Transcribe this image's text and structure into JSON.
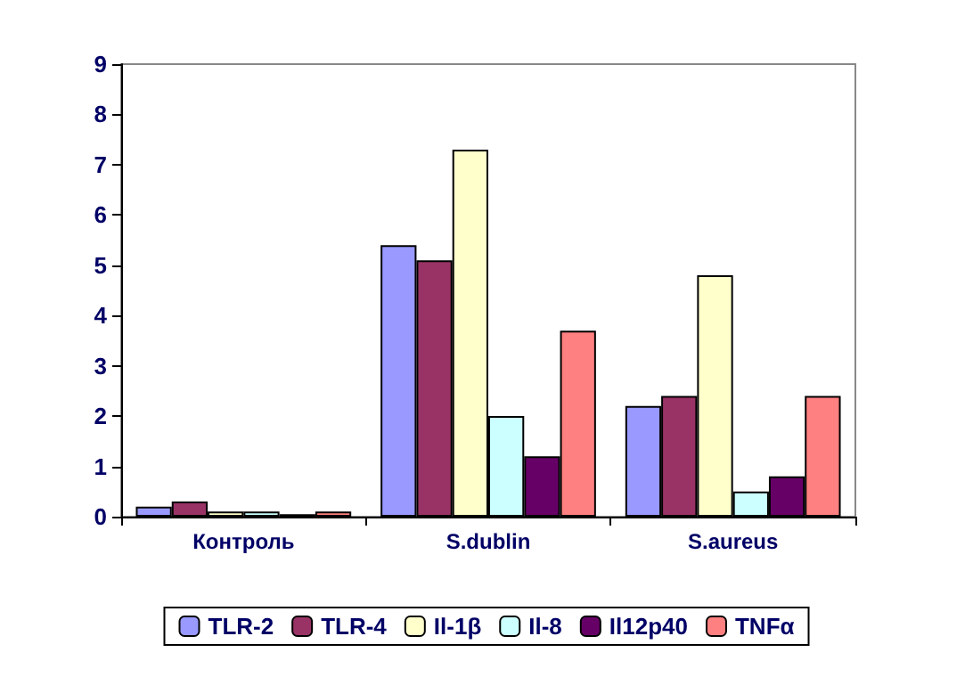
{
  "chart_data": {
    "type": "bar",
    "categories": [
      "Контроль",
      "S.dublin",
      "S.aureus"
    ],
    "series": [
      {
        "name": "TLR-2",
        "color": "#9999ff",
        "values": [
          0.2,
          5.4,
          2.2
        ]
      },
      {
        "name": "TLR-4",
        "color": "#993366",
        "values": [
          0.3,
          5.1,
          2.4
        ]
      },
      {
        "name": "Il-1β",
        "color": "#ffffcc",
        "values": [
          0.1,
          7.3,
          4.8
        ]
      },
      {
        "name": "Il-8",
        "color": "#ccffff",
        "values": [
          0.1,
          2.0,
          0.5
        ]
      },
      {
        "name": "Il12p40",
        "color": "#660066",
        "values": [
          0.05,
          1.2,
          0.8
        ]
      },
      {
        "name": "TNFα",
        "color": "#ff8080",
        "values": [
          0.1,
          3.7,
          2.4
        ]
      }
    ],
    "ylim": [
      0,
      9
    ],
    "yticks": [
      0,
      1,
      2,
      3,
      4,
      5,
      6,
      7,
      8,
      9
    ],
    "grid": false,
    "legend": "bottom"
  }
}
